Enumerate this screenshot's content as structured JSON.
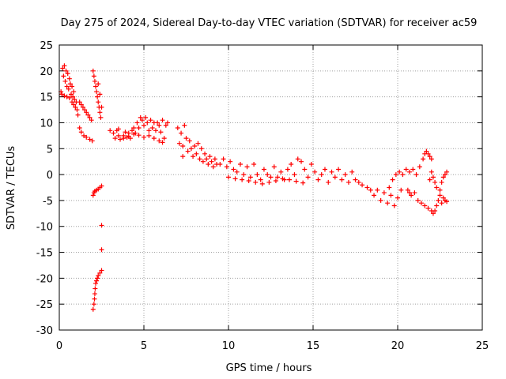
{
  "chart_data": {
    "type": "scatter",
    "title": "Day 275 of 2024, Sidereal Day-to-day VTEC variation (SDTVAR) for receiver ac59",
    "xlabel": "GPS time / hours",
    "ylabel": "SDTVAR / TECUs",
    "xlim": [
      0,
      25
    ],
    "ylim": [
      -30,
      25
    ],
    "xticks": [
      0,
      5,
      10,
      15,
      20,
      25
    ],
    "yticks": [
      25,
      20,
      15,
      10,
      5,
      0,
      -5,
      -10,
      -15,
      -20,
      -25,
      -30
    ],
    "grid": true,
    "marker": "+",
    "color": "#ff0000",
    "series": [
      {
        "name": "SDTVAR",
        "points": [
          [
            0.1,
            16
          ],
          [
            0.2,
            20.5
          ],
          [
            0.25,
            19
          ],
          [
            0.3,
            21
          ],
          [
            0.35,
            18
          ],
          [
            0.4,
            20
          ],
          [
            0.45,
            17
          ],
          [
            0.5,
            19.5
          ],
          [
            0.55,
            16.5
          ],
          [
            0.6,
            18.5
          ],
          [
            0.65,
            17.5
          ],
          [
            0.7,
            15.5
          ],
          [
            0.75,
            17
          ],
          [
            0.8,
            15
          ],
          [
            0.85,
            16
          ],
          [
            0.9,
            14.5
          ],
          [
            0.95,
            13
          ],
          [
            1.0,
            14
          ],
          [
            1.05,
            12.5
          ],
          [
            1.1,
            11.5
          ],
          [
            0.15,
            15.5
          ],
          [
            0.3,
            15.2
          ],
          [
            0.45,
            15
          ],
          [
            0.6,
            14.8
          ],
          [
            0.75,
            14
          ],
          [
            0.85,
            13.5
          ],
          [
            1.2,
            14
          ],
          [
            1.3,
            13.5
          ],
          [
            1.4,
            13
          ],
          [
            1.5,
            12.5
          ],
          [
            1.6,
            12
          ],
          [
            1.7,
            11.5
          ],
          [
            1.8,
            11
          ],
          [
            1.9,
            10.5
          ],
          [
            1.2,
            9
          ],
          [
            1.3,
            8.2
          ],
          [
            1.45,
            7.5
          ],
          [
            1.6,
            7.2
          ],
          [
            1.8,
            6.8
          ],
          [
            1.95,
            6.5
          ],
          [
            2.0,
            20
          ],
          [
            2.05,
            19
          ],
          [
            2.1,
            18
          ],
          [
            2.15,
            17
          ],
          [
            2.2,
            16
          ],
          [
            2.25,
            15
          ],
          [
            2.3,
            14
          ],
          [
            2.35,
            13
          ],
          [
            2.4,
            12
          ],
          [
            2.45,
            11
          ],
          [
            2.5,
            13
          ],
          [
            2.4,
            15.5
          ],
          [
            2.3,
            17.5
          ],
          [
            2.0,
            -4
          ],
          [
            2.05,
            -3.5
          ],
          [
            2.1,
            -3.2
          ],
          [
            2.2,
            -3
          ],
          [
            2.3,
            -2.8
          ],
          [
            2.4,
            -2.5
          ],
          [
            2.5,
            -2.2
          ],
          [
            2.5,
            -9.8
          ],
          [
            2.5,
            -14.5
          ],
          [
            2.0,
            -26
          ],
          [
            2.05,
            -25
          ],
          [
            2.08,
            -24
          ],
          [
            2.1,
            -23
          ],
          [
            2.12,
            -22
          ],
          [
            2.15,
            -21
          ],
          [
            2.2,
            -20.5
          ],
          [
            2.25,
            -20
          ],
          [
            2.3,
            -19.5
          ],
          [
            2.4,
            -19
          ],
          [
            2.5,
            -18.5
          ],
          [
            3.0,
            8.5
          ],
          [
            3.2,
            8
          ],
          [
            3.3,
            7
          ],
          [
            3.4,
            8.5
          ],
          [
            3.5,
            7.5
          ],
          [
            3.6,
            6.8
          ],
          [
            3.8,
            7.5
          ],
          [
            3.9,
            8.2
          ],
          [
            4.0,
            7.2
          ],
          [
            4.1,
            8
          ],
          [
            4.2,
            7
          ],
          [
            4.3,
            8.5
          ],
          [
            4.4,
            9
          ],
          [
            4.5,
            8
          ],
          [
            4.6,
            10
          ],
          [
            4.7,
            9
          ],
          [
            4.8,
            11
          ],
          [
            4.9,
            10.5
          ],
          [
            5.0,
            9.5
          ],
          [
            5.1,
            11
          ],
          [
            5.2,
            10
          ],
          [
            5.3,
            8.5
          ],
          [
            5.4,
            10.5
          ],
          [
            5.5,
            9
          ],
          [
            5.6,
            10
          ],
          [
            5.7,
            8.5
          ],
          [
            5.8,
            10
          ],
          [
            5.9,
            9.5
          ],
          [
            6.0,
            8.2
          ],
          [
            6.1,
            10.5
          ],
          [
            6.2,
            7
          ],
          [
            6.3,
            9.5
          ],
          [
            6.4,
            10
          ],
          [
            3.5,
            8.8
          ],
          [
            3.8,
            7
          ],
          [
            4.1,
            7.4
          ],
          [
            4.4,
            7.8
          ],
          [
            4.7,
            7.6
          ],
          [
            5.0,
            7.2
          ],
          [
            5.3,
            7.5
          ],
          [
            5.6,
            7
          ],
          [
            5.9,
            6.5
          ],
          [
            6.1,
            6.2
          ],
          [
            7.0,
            9
          ],
          [
            7.1,
            6
          ],
          [
            7.2,
            8
          ],
          [
            7.3,
            5.5
          ],
          [
            7.4,
            9.5
          ],
          [
            7.5,
            7
          ],
          [
            7.6,
            4.5
          ],
          [
            7.7,
            6.5
          ],
          [
            7.8,
            5
          ],
          [
            7.9,
            3.5
          ],
          [
            8.0,
            5.5
          ],
          [
            8.1,
            4
          ],
          [
            8.2,
            6
          ],
          [
            8.3,
            3
          ],
          [
            8.4,
            5
          ],
          [
            8.5,
            2.5
          ],
          [
            8.6,
            4
          ],
          [
            8.7,
            3
          ],
          [
            8.8,
            2
          ],
          [
            8.9,
            3.5
          ],
          [
            9.0,
            2.5
          ],
          [
            9.1,
            1.5
          ],
          [
            9.2,
            3
          ],
          [
            9.3,
            2
          ],
          [
            7.3,
            3.5
          ],
          [
            9.5,
            2
          ],
          [
            9.7,
            3
          ],
          [
            9.9,
            1.5
          ],
          [
            10.1,
            2.5
          ],
          [
            10.3,
            1
          ],
          [
            10.5,
            0.5
          ],
          [
            10.7,
            2
          ],
          [
            10.9,
            0
          ],
          [
            11.1,
            1.5
          ],
          [
            11.3,
            -0.5
          ],
          [
            11.5,
            2
          ],
          [
            11.7,
            0
          ],
          [
            11.9,
            -1
          ],
          [
            12.1,
            1
          ],
          [
            12.3,
            0
          ],
          [
            12.5,
            -0.5
          ],
          [
            12.7,
            1.5
          ],
          [
            12.9,
            -0.5
          ],
          [
            13.1,
            0.5
          ],
          [
            13.3,
            -1
          ],
          [
            13.5,
            1
          ],
          [
            13.7,
            2
          ],
          [
            13.9,
            0
          ],
          [
            14.1,
            3
          ],
          [
            14.3,
            2.5
          ],
          [
            14.5,
            1
          ],
          [
            14.7,
            -0.5
          ],
          [
            14.9,
            2
          ],
          [
            15.1,
            0.5
          ],
          [
            15.3,
            -1
          ],
          [
            15.5,
            0
          ],
          [
            15.7,
            1
          ],
          [
            15.9,
            -1.5
          ],
          [
            16.1,
            0.5
          ],
          [
            16.3,
            -0.5
          ],
          [
            16.5,
            1
          ],
          [
            16.7,
            -1
          ],
          [
            16.9,
            0
          ],
          [
            17.1,
            -1.5
          ],
          [
            17.3,
            0.5
          ],
          [
            17.5,
            -1
          ],
          [
            17.7,
            -1.5
          ],
          [
            17.9,
            -2
          ],
          [
            10.0,
            -0.5
          ],
          [
            10.4,
            -0.8
          ],
          [
            10.8,
            -1
          ],
          [
            11.2,
            -1.2
          ],
          [
            11.6,
            -1.5
          ],
          [
            12.0,
            -1.8
          ],
          [
            12.4,
            -1.5
          ],
          [
            12.8,
            -1.2
          ],
          [
            13.2,
            -0.8
          ],
          [
            13.6,
            -1
          ],
          [
            14.0,
            -1.3
          ],
          [
            14.4,
            -1.6
          ],
          [
            18.2,
            -2.5
          ],
          [
            18.4,
            -3
          ],
          [
            18.6,
            -4
          ],
          [
            18.8,
            -3
          ],
          [
            19.0,
            -5
          ],
          [
            19.2,
            -3.5
          ],
          [
            19.4,
            -5.5
          ],
          [
            19.6,
            -4
          ],
          [
            19.8,
            -6
          ],
          [
            20.0,
            -4.5
          ],
          [
            20.2,
            -3
          ],
          [
            19.5,
            -2.5
          ],
          [
            19.7,
            -1
          ],
          [
            19.9,
            0
          ],
          [
            20.1,
            0.5
          ],
          [
            20.3,
            0
          ],
          [
            20.5,
            1
          ],
          [
            20.7,
            0.5
          ],
          [
            20.9,
            1
          ],
          [
            21.1,
            0
          ],
          [
            21.3,
            1.5
          ],
          [
            21.5,
            3
          ],
          [
            21.6,
            4
          ],
          [
            21.7,
            4.5
          ],
          [
            21.8,
            4
          ],
          [
            21.9,
            3.5
          ],
          [
            22.0,
            3
          ],
          [
            20.6,
            -3
          ],
          [
            20.8,
            -4
          ],
          [
            21.0,
            -3.5
          ],
          [
            21.2,
            -5
          ],
          [
            21.4,
            -5.5
          ],
          [
            21.6,
            -6
          ],
          [
            21.8,
            -6.5
          ],
          [
            22.0,
            -7
          ],
          [
            22.1,
            -7.5
          ],
          [
            22.2,
            -7
          ],
          [
            22.3,
            -6
          ],
          [
            22.4,
            -5
          ],
          [
            22.5,
            -4
          ],
          [
            22.6,
            -5.5
          ],
          [
            22.7,
            -4.5
          ],
          [
            22.8,
            -5
          ],
          [
            22.9,
            -5.2
          ],
          [
            22.5,
            -3
          ],
          [
            22.6,
            -1.5
          ],
          [
            22.7,
            -0.5
          ],
          [
            22.8,
            0
          ],
          [
            22.9,
            0.5
          ],
          [
            22.3,
            -2.5
          ],
          [
            22.2,
            -1.5
          ],
          [
            22.1,
            -0.5
          ],
          [
            22.0,
            0.5
          ],
          [
            21.9,
            -1
          ],
          [
            20.7,
            -3.5
          ]
        ]
      }
    ]
  }
}
